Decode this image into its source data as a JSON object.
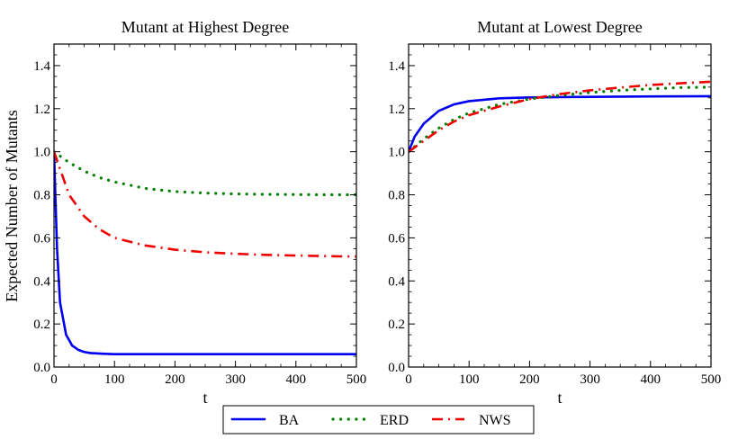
{
  "chart_data": [
    {
      "type": "line",
      "title": "Mutant at Highest Degree",
      "xlabel": "t",
      "ylabel": "Expected Number of Mutants",
      "xlim": [
        0,
        500
      ],
      "ylim": [
        0,
        1.5
      ],
      "xticks": [
        "0",
        "100",
        "200",
        "300",
        "400",
        "500"
      ],
      "yticks": [
        "0.0",
        "0.2",
        "0.4",
        "0.6",
        "0.8",
        "1.0",
        "1.2",
        "1.4"
      ],
      "series": [
        {
          "name": "BA",
          "color": "#0000ee",
          "style": "solid",
          "x": [
            0,
            5,
            10,
            20,
            30,
            40,
            50,
            60,
            80,
            100,
            150,
            200,
            300,
            400,
            500
          ],
          "values": [
            1.0,
            0.55,
            0.3,
            0.15,
            0.1,
            0.08,
            0.07,
            0.065,
            0.062,
            0.06,
            0.06,
            0.06,
            0.06,
            0.06,
            0.06
          ]
        },
        {
          "name": "ERD",
          "color": "#008000",
          "style": "dotted",
          "x": [
            0,
            25,
            50,
            75,
            100,
            150,
            200,
            250,
            300,
            350,
            400,
            450,
            500
          ],
          "values": [
            1.0,
            0.95,
            0.91,
            0.88,
            0.86,
            0.83,
            0.815,
            0.808,
            0.804,
            0.802,
            0.801,
            0.8,
            0.8
          ]
        },
        {
          "name": "NWS",
          "color": "#ee0000",
          "style": "dashdot",
          "x": [
            0,
            25,
            50,
            75,
            100,
            150,
            200,
            250,
            300,
            350,
            400,
            450,
            500
          ],
          "values": [
            1.0,
            0.8,
            0.7,
            0.64,
            0.6,
            0.565,
            0.545,
            0.533,
            0.526,
            0.521,
            0.518,
            0.515,
            0.513
          ]
        }
      ]
    },
    {
      "type": "line",
      "title": "Mutant at Lowest Degree",
      "xlabel": "t",
      "ylabel": "",
      "xlim": [
        0,
        500
      ],
      "ylim": [
        0,
        1.5
      ],
      "xticks": [
        "0",
        "100",
        "200",
        "300",
        "400",
        "500"
      ],
      "yticks": [
        "0.0",
        "0.2",
        "0.4",
        "0.6",
        "0.8",
        "1.0",
        "1.2",
        "1.4"
      ],
      "series": [
        {
          "name": "BA",
          "color": "#0000ee",
          "style": "solid",
          "x": [
            0,
            10,
            25,
            50,
            75,
            100,
            150,
            200,
            300,
            400,
            500
          ],
          "values": [
            1.0,
            1.07,
            1.13,
            1.19,
            1.22,
            1.235,
            1.248,
            1.252,
            1.255,
            1.257,
            1.258
          ]
        },
        {
          "name": "ERD",
          "color": "#008000",
          "style": "dotted",
          "x": [
            0,
            25,
            50,
            75,
            100,
            150,
            200,
            250,
            300,
            350,
            400,
            450,
            500
          ],
          "values": [
            1.0,
            1.06,
            1.11,
            1.15,
            1.18,
            1.22,
            1.245,
            1.262,
            1.275,
            1.285,
            1.292,
            1.298,
            1.3
          ]
        },
        {
          "name": "NWS",
          "color": "#ee0000",
          "style": "dashdot",
          "x": [
            0,
            25,
            50,
            75,
            100,
            150,
            200,
            250,
            300,
            350,
            400,
            450,
            500
          ],
          "values": [
            1.0,
            1.05,
            1.1,
            1.14,
            1.17,
            1.21,
            1.245,
            1.268,
            1.285,
            1.298,
            1.31,
            1.318,
            1.325
          ]
        }
      ]
    }
  ],
  "legend": {
    "placement": "bottom-center",
    "entries": [
      {
        "label": "BA",
        "color": "#0000ee",
        "style": "solid"
      },
      {
        "label": "ERD",
        "color": "#008000",
        "style": "dotted"
      },
      {
        "label": "NWS",
        "color": "#ee0000",
        "style": "dashdot"
      }
    ]
  }
}
